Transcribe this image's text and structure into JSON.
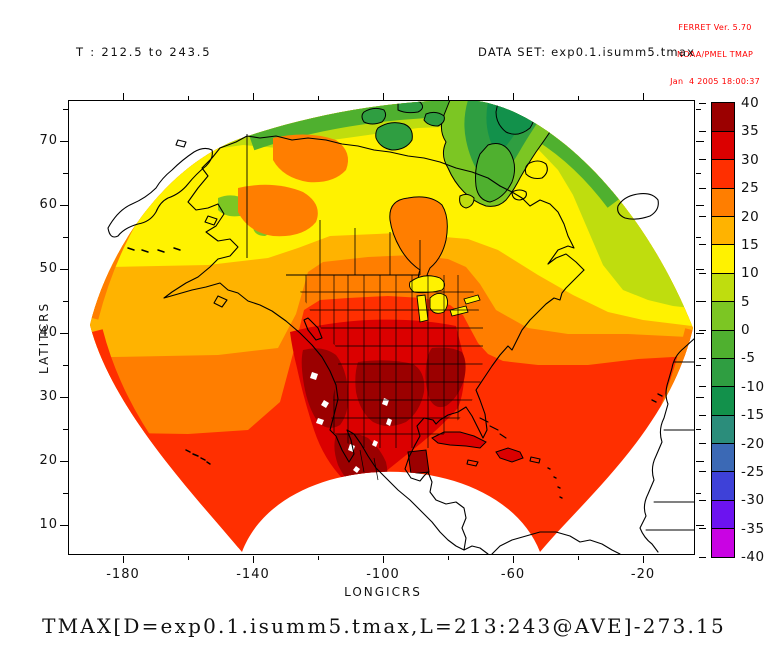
{
  "branding": {
    "line1": "FERRET Ver. 5.70",
    "line2": "NOAA/PMEL TMAP",
    "line3": "Jan  4 2005 18:00:37",
    "color": "#ff0000"
  },
  "subtitle": {
    "left": "T : 212.5 to 243.5",
    "right": "DATA SET: exp0.1.isumm5.tmax"
  },
  "title": "TMAX[D=exp0.1.isumm5.tmax,L=213:243@AVE]-273.15",
  "axes": {
    "x": {
      "label": "LONGICRS",
      "major_ticks": [
        -180,
        -140,
        -100,
        -60,
        -20
      ],
      "minor_ticks": [
        -160,
        -120,
        -80,
        -40
      ]
    },
    "y": {
      "label": "LATITCRS",
      "major_ticks": [
        10,
        20,
        30,
        40,
        50,
        60,
        70
      ],
      "minor_ticks": [
        15,
        25,
        35,
        45,
        55,
        65,
        75
      ]
    }
  },
  "colorbar": {
    "levels": [
      40,
      35,
      30,
      25,
      20,
      15,
      10,
      5,
      0,
      -5,
      -10,
      -15,
      -20,
      -25,
      -30,
      -35,
      -40
    ],
    "colors": [
      "#9b0000",
      "#db0000",
      "#ff2f00",
      "#ff7e00",
      "#ffb300",
      "#fff200",
      "#bfdd0e",
      "#7cc623",
      "#4fb02f",
      "#2f9e41",
      "#12914b",
      "#2b8d7b",
      "#3b69b5",
      "#3e41d8",
      "#6c13f0",
      "#c903e3"
    ]
  },
  "palette": {
    "b40": "#9b0000",
    "b35": "#db0000",
    "b30": "#ff2f00",
    "b25": "#ff7e00",
    "b20": "#ffb300",
    "b15": "#fff200",
    "b10": "#bfdd0e",
    "b5": "#7cc623",
    "b0": "#4fb02f",
    "bm5": "#2f9e41",
    "bm10": "#12914b",
    "white": "#ffffff"
  },
  "frame_color": "#000000",
  "background": "#ffffff"
}
